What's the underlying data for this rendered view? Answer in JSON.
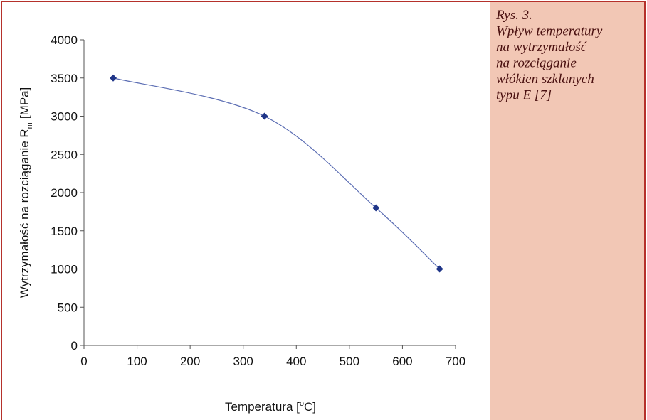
{
  "chart_data": {
    "type": "line",
    "x": [
      55,
      340,
      550,
      670
    ],
    "values": [
      3500,
      3000,
      1800,
      1000
    ],
    "color": "#5b6db3",
    "marker_color": "#1f3588",
    "xlim": [
      0,
      700
    ],
    "xticks": [
      0,
      100,
      200,
      300,
      400,
      500,
      600,
      700
    ],
    "ylim": [
      0,
      4000
    ],
    "yticks": [
      0,
      500,
      1000,
      1500,
      2000,
      2500,
      3000,
      3500,
      4000
    ],
    "x_label": {
      "text": "Temperatura [",
      "superscript": "o",
      "suffix": "C]"
    },
    "y_label": {
      "text": "Wytrzymałość na rozciąganie R",
      "subscript": "m",
      "suffix": "[MPa]"
    },
    "grid": false
  },
  "caption": [
    "Rys. 3.",
    "Wpływ temperatury",
    "na wytrzymałość",
    "na rozciąganie",
    "włókien szklanych",
    "typu E [7]"
  ]
}
